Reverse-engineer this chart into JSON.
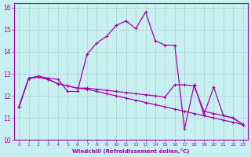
{
  "xlabel": "Windchill (Refroidissement éolien,°C)",
  "background_color": "#c8f0f0",
  "grid_color": "#b0dede",
  "line_color": "#aa00aa",
  "xlim": [
    -0.5,
    23.5
  ],
  "ylim": [
    10,
    16.2
  ],
  "xticks": [
    0,
    1,
    2,
    3,
    4,
    5,
    6,
    7,
    8,
    9,
    10,
    11,
    12,
    13,
    14,
    15,
    16,
    17,
    18,
    19,
    20,
    21,
    22,
    23
  ],
  "yticks": [
    10,
    11,
    12,
    13,
    14,
    15,
    16
  ],
  "series1_x": [
    0,
    1,
    2,
    3,
    4,
    5,
    6,
    7,
    8,
    9,
    10,
    11,
    12,
    13,
    14,
    15,
    16,
    17,
    18,
    19,
    20,
    21,
    22,
    23
  ],
  "series1_y": [
    11.5,
    12.8,
    12.9,
    12.8,
    12.75,
    12.2,
    12.2,
    13.9,
    14.4,
    14.7,
    15.2,
    15.4,
    15.05,
    15.8,
    14.5,
    14.3,
    14.3,
    10.5,
    12.5,
    11.15,
    12.4,
    11.1,
    11.0,
    10.7
  ],
  "series2_x": [
    0,
    1,
    2,
    3,
    4,
    5,
    6,
    7,
    8,
    9,
    10,
    11,
    12,
    13,
    14,
    15,
    16,
    17,
    18,
    19,
    20,
    21,
    22,
    23
  ],
  "series2_y": [
    11.5,
    12.8,
    12.85,
    12.75,
    12.55,
    12.45,
    12.35,
    12.35,
    12.3,
    12.25,
    12.2,
    12.15,
    12.1,
    12.05,
    12.0,
    11.95,
    12.5,
    12.5,
    12.45,
    11.3,
    11.2,
    11.1,
    11.0,
    10.7
  ],
  "series3_x": [
    0,
    1,
    2,
    3,
    4,
    5,
    6,
    7,
    8,
    9,
    10,
    11,
    12,
    13,
    14,
    15,
    16,
    17,
    18,
    19,
    20,
    21,
    22,
    23
  ],
  "series3_y": [
    11.5,
    12.8,
    12.85,
    12.75,
    12.55,
    12.45,
    12.35,
    12.3,
    12.2,
    12.1,
    12.0,
    11.9,
    11.8,
    11.7,
    11.6,
    11.5,
    11.4,
    11.3,
    11.2,
    11.1,
    11.0,
    10.9,
    10.8,
    10.7
  ]
}
